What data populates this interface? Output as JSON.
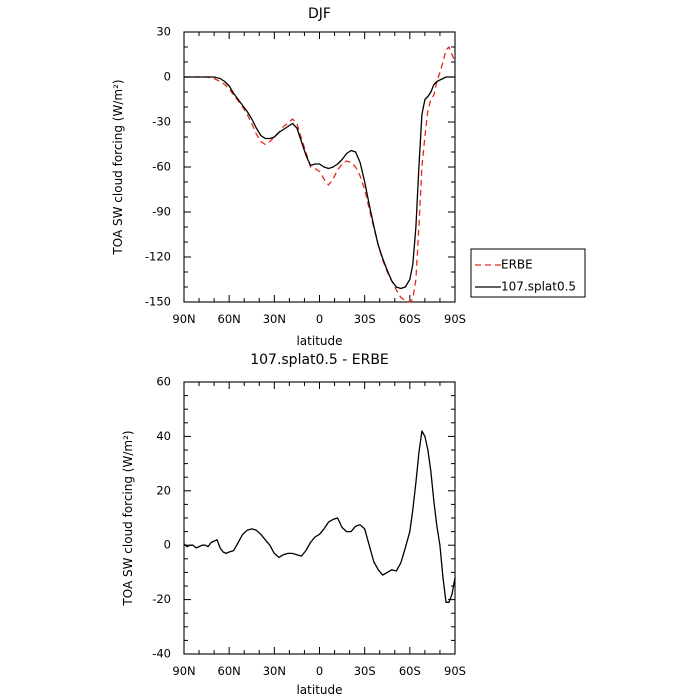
{
  "chart_data": [
    {
      "type": "line",
      "title": "DJF",
      "xlabel": "latitude",
      "ylabel": "TOA SW cloud forcing (W/m²)",
      "xlim": [
        90,
        -90
      ],
      "ylim": [
        -150,
        30
      ],
      "x_tick_values": [
        90,
        60,
        30,
        0,
        -30,
        -60,
        -90
      ],
      "x_tick_labels": [
        "90N",
        "60N",
        "30N",
        "0",
        "30S",
        "60S",
        "90S"
      ],
      "y_ticks": [
        30,
        0,
        -30,
        -60,
        -90,
        -120,
        -150
      ],
      "legend_position": "right",
      "series": [
        {
          "name": "ERBE",
          "color": "#e8281e",
          "dash": "dashed",
          "x": [
            90,
            85,
            80,
            75,
            70,
            66,
            63,
            60,
            57,
            54,
            51,
            48,
            45,
            42,
            39,
            36,
            33,
            30,
            27,
            24,
            21,
            18,
            15,
            12,
            9,
            6,
            3,
            0,
            -3,
            -6,
            -9,
            -12,
            -15,
            -18,
            -21,
            -24,
            -27,
            -30,
            -33,
            -36,
            -39,
            -42,
            -45,
            -48,
            -51,
            -54,
            -57,
            -60,
            -62,
            -64,
            -66,
            -68,
            -70,
            -72,
            -74,
            -76,
            -78,
            -80,
            -82,
            -84,
            -86,
            -88,
            -90
          ],
          "y": [
            0,
            0,
            0,
            0,
            -1,
            -3,
            -5,
            -8,
            -12,
            -16,
            -20,
            -25,
            -31,
            -38,
            -43,
            -45,
            -43,
            -40,
            -37,
            -33,
            -31,
            -28,
            -31,
            -41,
            -50,
            -60,
            -61,
            -63,
            -68,
            -72,
            -68,
            -62,
            -58,
            -56,
            -57,
            -60,
            -66,
            -75,
            -88,
            -100,
            -112,
            -122,
            -130,
            -136,
            -142,
            -147,
            -149,
            -150,
            -148,
            -135,
            -100,
            -60,
            -40,
            -22,
            -15,
            -12,
            -3,
            3,
            10,
            18,
            20,
            15,
            10
          ]
        },
        {
          "name": "107.splat0.5",
          "color": "#000000",
          "dash": "solid",
          "x": [
            90,
            85,
            80,
            75,
            70,
            66,
            63,
            60,
            57,
            54,
            51,
            48,
            45,
            42,
            39,
            36,
            33,
            30,
            27,
            24,
            21,
            18,
            15,
            12,
            9,
            6,
            3,
            0,
            -3,
            -6,
            -9,
            -12,
            -15,
            -18,
            -21,
            -24,
            -27,
            -30,
            -33,
            -36,
            -39,
            -42,
            -45,
            -48,
            -51,
            -54,
            -57,
            -60,
            -62,
            -64,
            -66,
            -68,
            -70,
            -72,
            -74,
            -76,
            -78,
            -80,
            -82,
            -84,
            -86,
            -88,
            -90
          ],
          "y": [
            0,
            0,
            0,
            0,
            0,
            -1,
            -3,
            -6,
            -11,
            -15,
            -19,
            -23,
            -28,
            -34,
            -39,
            -41,
            -41,
            -40,
            -37,
            -35,
            -33,
            -31,
            -34,
            -43,
            -52,
            -59,
            -58,
            -58,
            -60,
            -61,
            -60,
            -58,
            -55,
            -51,
            -49,
            -50,
            -57,
            -70,
            -85,
            -99,
            -112,
            -121,
            -129,
            -136,
            -140,
            -141,
            -140,
            -135,
            -125,
            -100,
            -60,
            -25,
            -15,
            -13,
            -10,
            -5,
            -3,
            -2,
            -1,
            0,
            0,
            0,
            0
          ]
        }
      ]
    },
    {
      "type": "line",
      "title": "107.splat0.5 - ERBE",
      "xlabel": "latitude",
      "ylabel": "TOA SW cloud forcing (W/m²)",
      "xlim": [
        90,
        -90
      ],
      "ylim": [
        -40,
        60
      ],
      "x_tick_values": [
        90,
        60,
        30,
        0,
        -30,
        -60,
        -90
      ],
      "x_tick_labels": [
        "90N",
        "60N",
        "30N",
        "0",
        "30S",
        "60S",
        "90S"
      ],
      "y_ticks": [
        60,
        40,
        20,
        0,
        -20,
        -40
      ],
      "series": [
        {
          "color": "#000000",
          "dash": "solid",
          "x": [
            90,
            88,
            86,
            84,
            82,
            80,
            78,
            76,
            74,
            72,
            70,
            68,
            66,
            64,
            62,
            60,
            57,
            54,
            51,
            48,
            45,
            42,
            39,
            36,
            33,
            30,
            27,
            24,
            21,
            18,
            15,
            12,
            9,
            6,
            3,
            0,
            -3,
            -6,
            -9,
            -12,
            -15,
            -18,
            -21,
            -24,
            -27,
            -30,
            -33,
            -36,
            -39,
            -42,
            -45,
            -48,
            -51,
            -54,
            -57,
            -60,
            -62,
            -64,
            -66,
            -68,
            -70,
            -72,
            -74,
            -76,
            -78,
            -80,
            -82,
            -84,
            -86,
            -88,
            -90
          ],
          "y": [
            0.5,
            -0.5,
            0,
            0,
            -1,
            -0.5,
            0,
            0,
            -0.5,
            1,
            1.5,
            2,
            -1,
            -2.5,
            -3,
            -2.5,
            -2,
            1,
            4,
            5.5,
            6,
            5.5,
            4,
            2,
            0,
            -3,
            -4.5,
            -3.5,
            -3,
            -3,
            -3.5,
            -4,
            -2,
            1,
            3,
            4,
            6,
            8.5,
            9.5,
            10,
            6.5,
            5,
            5,
            7,
            7.5,
            6,
            0,
            -6,
            -9,
            -11,
            -10,
            -9,
            -9.5,
            -6.5,
            -1,
            5,
            13,
            23,
            34,
            42,
            40,
            35,
            27,
            16,
            7,
            0,
            -12,
            -21,
            -21,
            -18,
            -12
          ]
        }
      ]
    }
  ]
}
